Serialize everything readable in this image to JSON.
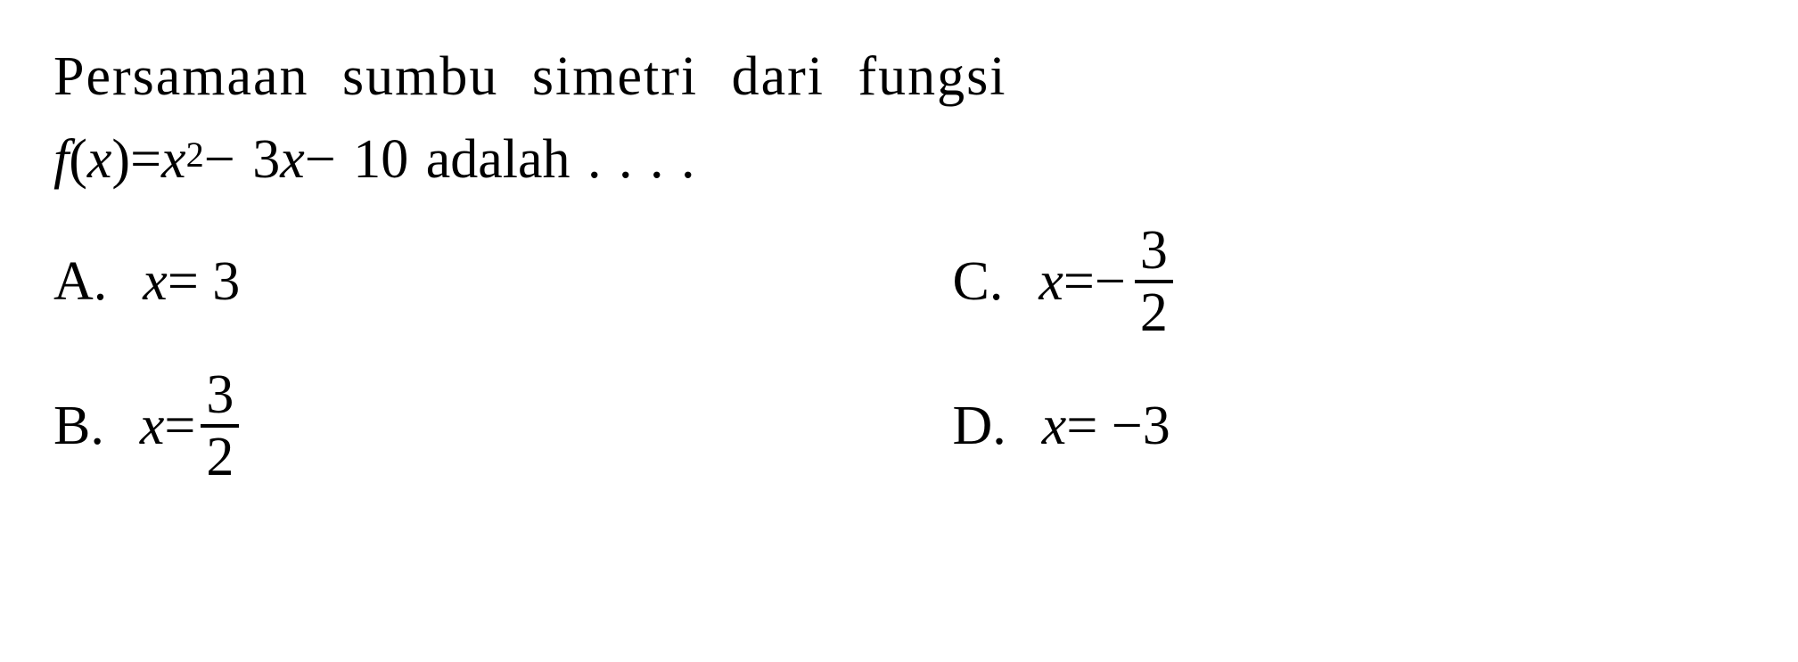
{
  "question": {
    "line1": "Persamaan sumbu simetri dari fungsi",
    "function_prefix": "f",
    "function_open": "(",
    "function_var": "x",
    "function_close": ")",
    "equals": " = ",
    "term1_var": "x",
    "term1_exp": "2",
    "minus1": " − 3",
    "term2_var": "x",
    "minus2": " − 10 adalah . . . ."
  },
  "options": {
    "a": {
      "label": "A.",
      "var": "x",
      "eq": " = 3"
    },
    "b": {
      "label": "B.",
      "var": "x",
      "eq": " = ",
      "num": "3",
      "den": "2"
    },
    "c": {
      "label": "C.",
      "var": "x",
      "eq": " = ",
      "neg": "−",
      "num": "3",
      "den": "2"
    },
    "d": {
      "label": "D.",
      "var": "x",
      "eq": " = −3"
    }
  },
  "style": {
    "text_color": "#000000",
    "background_color": "#ffffff",
    "font_family": "Times New Roman",
    "base_fontsize": 62
  }
}
